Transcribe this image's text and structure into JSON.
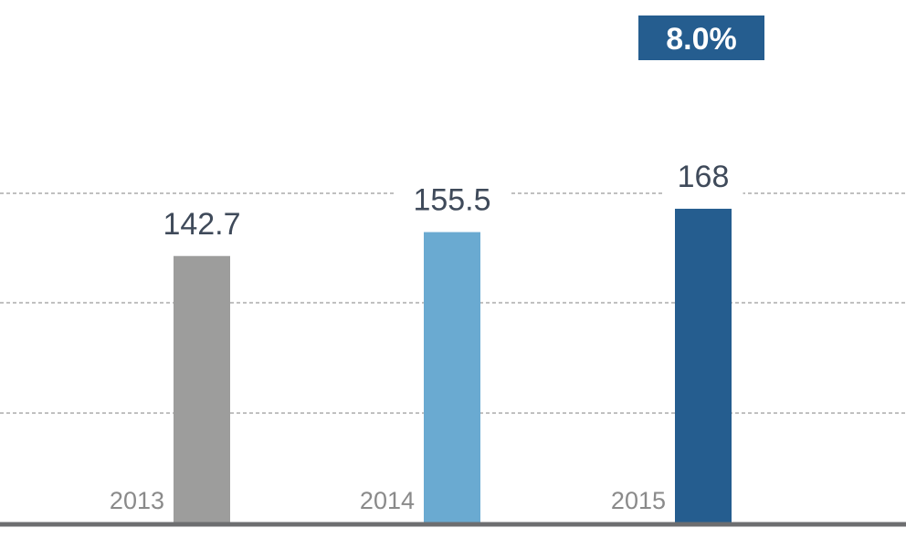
{
  "chart_data": {
    "type": "bar",
    "categories": [
      "2013",
      "2014",
      "2015"
    ],
    "values": [
      142.7,
      155.5,
      168
    ],
    "value_labels": [
      "142.7",
      "155.5",
      "168"
    ],
    "bar_colors": [
      "#9d9d9c",
      "#6aaad1",
      "#255d8f"
    ],
    "growth_badge": "8.0%",
    "badge_color": "#255d8f",
    "ylim": [
      0,
      180
    ],
    "grid": true,
    "title": "",
    "xlabel": "",
    "ylabel": ""
  }
}
